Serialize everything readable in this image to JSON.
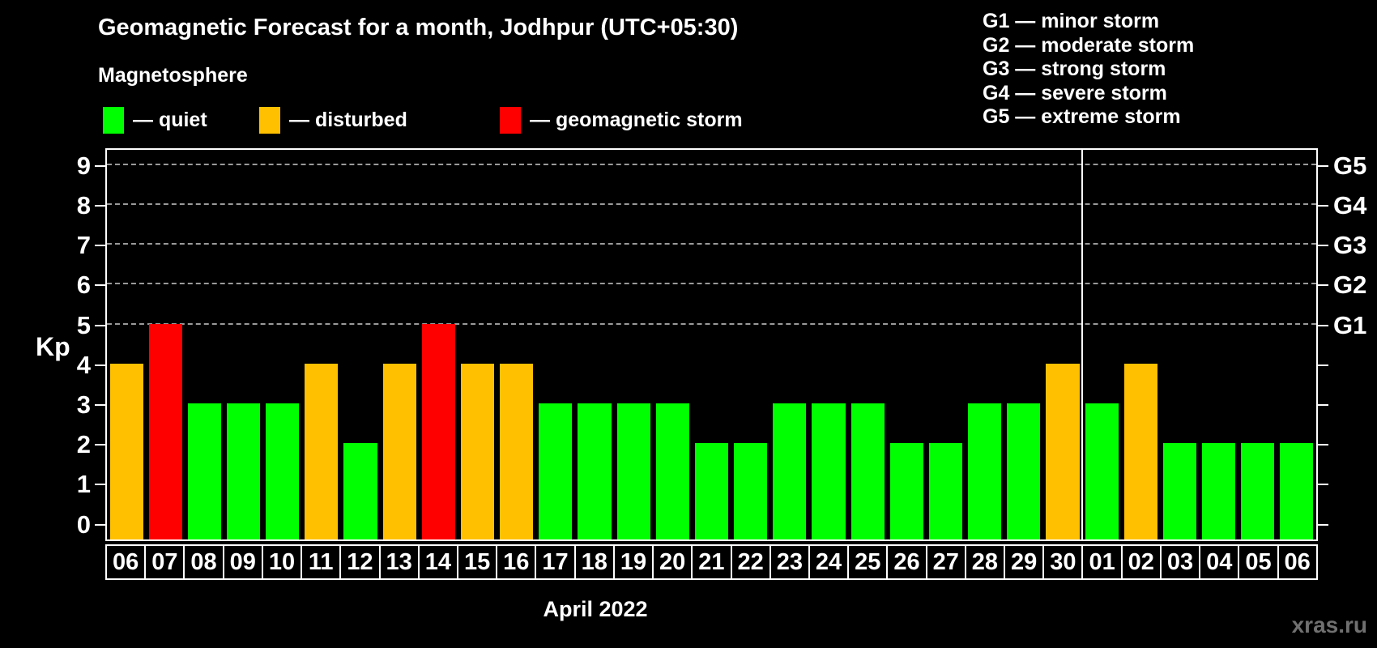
{
  "title": "Geomagnetic Forecast for a month, Jodhpur (UTC+05:30)",
  "subtitle": "Magnetosphere",
  "legend": [
    {
      "status": "quiet",
      "label": "— quiet",
      "color": "#00ff00"
    },
    {
      "status": "disturbed",
      "label": "— disturbed",
      "color": "#ffc000"
    },
    {
      "status": "storm",
      "label": "— geomagnetic storm",
      "color": "#ff0000"
    }
  ],
  "g_legend": [
    "G1 — minor storm",
    "G2 — moderate storm",
    "G3 — strong storm",
    "G4 — severe storm",
    "G5 — extreme storm"
  ],
  "watermark": "xras.ru",
  "colors": {
    "quiet": "#00ff00",
    "disturbed": "#ffc000",
    "storm": "#ff0000",
    "background": "#000000",
    "text": "#ffffff",
    "grid": "#9a9a9a",
    "watermark": "#707070"
  },
  "chart_data": {
    "type": "bar",
    "title": "Geomagnetic Forecast for a month, Jodhpur (UTC+05:30)",
    "xlabel": "April 2022",
    "ylabel": "Kp",
    "ylim": [
      0,
      9
    ],
    "categories": [
      "06",
      "07",
      "08",
      "09",
      "10",
      "11",
      "12",
      "13",
      "14",
      "15",
      "16",
      "17",
      "18",
      "19",
      "20",
      "21",
      "22",
      "23",
      "24",
      "25",
      "26",
      "27",
      "28",
      "29",
      "30",
      "01",
      "02",
      "03",
      "04",
      "05",
      "06"
    ],
    "values": [
      4,
      5,
      3,
      3,
      3,
      4,
      2,
      4,
      5,
      4,
      4,
      3,
      3,
      3,
      3,
      2,
      2,
      3,
      3,
      3,
      2,
      2,
      3,
      3,
      4,
      3,
      4,
      2,
      2,
      2,
      2
    ],
    "statuses": [
      "disturbed",
      "storm",
      "quiet",
      "quiet",
      "quiet",
      "disturbed",
      "quiet",
      "disturbed",
      "storm",
      "disturbed",
      "disturbed",
      "quiet",
      "quiet",
      "quiet",
      "quiet",
      "quiet",
      "quiet",
      "quiet",
      "quiet",
      "quiet",
      "quiet",
      "quiet",
      "quiet",
      "quiet",
      "disturbed",
      "quiet",
      "disturbed",
      "quiet",
      "quiet",
      "quiet",
      "quiet"
    ],
    "y_ticks": [
      0,
      1,
      2,
      3,
      4,
      5,
      6,
      7,
      8,
      9
    ],
    "gridlines": [
      5,
      6,
      7,
      8,
      9
    ],
    "right_axis": [
      {
        "label": "G1",
        "value": 5
      },
      {
        "label": "G2",
        "value": 6
      },
      {
        "label": "G3",
        "value": 7
      },
      {
        "label": "G4",
        "value": 8
      },
      {
        "label": "G5",
        "value": 9
      }
    ],
    "month_separator_after_category_index": 24,
    "legend_position": "top-left",
    "grid": "dashed-horizontal"
  }
}
